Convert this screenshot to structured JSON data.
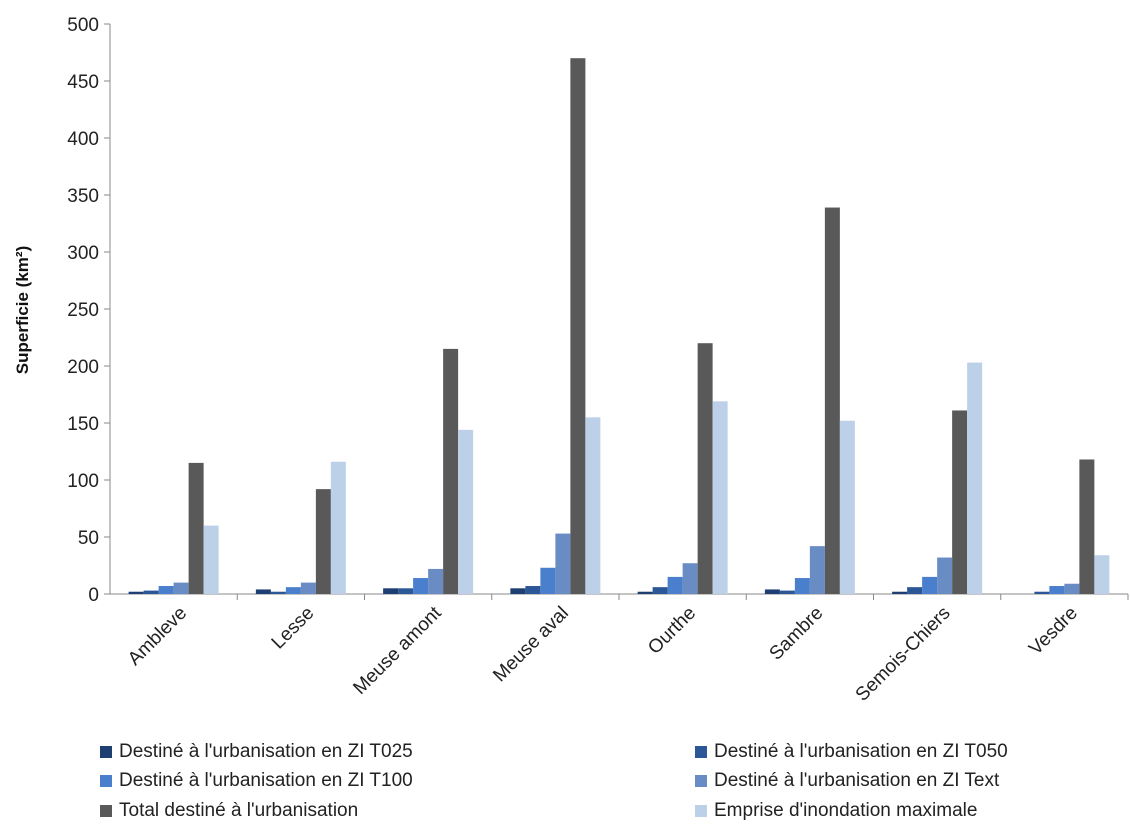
{
  "chart_data": {
    "type": "bar",
    "title": "",
    "xlabel": "",
    "ylabel": "Superficie (km²)",
    "ylim": [
      0,
      500
    ],
    "yticks": [
      0,
      50,
      100,
      150,
      200,
      250,
      300,
      350,
      400,
      450,
      500
    ],
    "grid": false,
    "legend_position": "bottom",
    "categories": [
      "Ambleve",
      "Lesse",
      "Meuse amont",
      "Meuse aval",
      "Ourthe",
      "Sambre",
      "Semois-Chiers",
      "Vesdre"
    ],
    "series": [
      {
        "name": "Destiné à l'urbanisation en ZI T025",
        "color": "#1f3f72",
        "values": [
          2,
          4,
          5,
          5,
          2,
          4,
          2,
          0
        ]
      },
      {
        "name": "Destiné à l'urbanisation en ZI T050",
        "color": "#2b5797",
        "values": [
          3,
          2,
          5,
          7,
          6,
          3,
          6,
          2
        ]
      },
      {
        "name": "Destiné à l'urbanisation en ZI T100",
        "color": "#4a7fce",
        "values": [
          7,
          6,
          14,
          23,
          15,
          14,
          15,
          7
        ]
      },
      {
        "name": "Destiné à l'urbanisation en ZI Text",
        "color": "#6a8cc4",
        "values": [
          10,
          10,
          22,
          53,
          27,
          42,
          32,
          9
        ]
      },
      {
        "name": "Total destiné à l'urbanisation",
        "color": "#595959",
        "values": [
          115,
          92,
          215,
          470,
          220,
          339,
          161,
          118
        ]
      },
      {
        "name": "Emprise d'inondation maximale",
        "color": "#bcd0e8",
        "values": [
          60,
          116,
          144,
          155,
          169,
          152,
          203,
          34
        ]
      }
    ]
  }
}
